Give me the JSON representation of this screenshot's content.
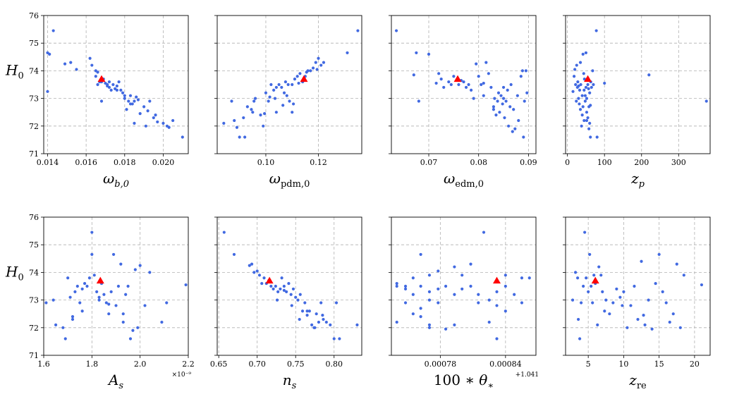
{
  "figure": {
    "ylabel": "H₀",
    "best_fit_color": "#ff0000",
    "point_color": "#4169e1",
    "grid_color": "#b0b0b0"
  },
  "chart_data": [
    {
      "type": "scatter",
      "xlabel": "ωb,0",
      "ylabel": "H₀",
      "xlim": [
        0.0138,
        0.0213
      ],
      "ylim": [
        71,
        76
      ],
      "xticks": [
        0.014,
        0.016,
        0.018,
        0.02
      ],
      "xtick_labels": [
        "0.014",
        "0.016",
        "0.018",
        "0.020"
      ],
      "yticks": [
        71,
        72,
        73,
        74,
        75,
        76
      ],
      "ytick_labels": [
        "71",
        "72",
        "73",
        "74",
        "75",
        "76"
      ],
      "offset_text": "",
      "best_fit": [
        0.0168,
        73.7
      ],
      "x": [
        0.014,
        0.0141,
        0.0143,
        0.014,
        0.0149,
        0.0152,
        0.0155,
        0.0162,
        0.0163,
        0.0165,
        0.0166,
        0.0165,
        0.0166,
        0.0167,
        0.0168,
        0.0169,
        0.017,
        0.0171,
        0.0172,
        0.0172,
        0.0173,
        0.0174,
        0.0175,
        0.0176,
        0.0177,
        0.0178,
        0.0179,
        0.018,
        0.0181,
        0.0182,
        0.0183,
        0.0184,
        0.0185,
        0.0185,
        0.0187,
        0.0188,
        0.019,
        0.0191,
        0.0193,
        0.0195,
        0.0196,
        0.02,
        0.0202,
        0.0205,
        0.021,
        0.0168,
        0.0171,
        0.0176,
        0.018,
        0.0183,
        0.0186,
        0.0192,
        0.0197,
        0.0203
      ],
      "y": [
        74.65,
        74.6,
        75.45,
        73.25,
        74.25,
        74.3,
        74.05,
        74.45,
        74.2,
        74.0,
        73.95,
        73.8,
        73.5,
        73.6,
        73.6,
        73.7,
        73.55,
        73.5,
        73.4,
        73.6,
        73.3,
        73.5,
        73.35,
        73.45,
        73.6,
        73.3,
        73.2,
        73.0,
        72.6,
        72.9,
        73.1,
        72.8,
        72.9,
        72.1,
        72.95,
        72.45,
        72.7,
        72.0,
        72.9,
        72.3,
        72.4,
        72.1,
        72.0,
        72.2,
        71.6,
        72.9,
        73.45,
        73.3,
        73.1,
        72.8,
        73.05,
        72.55,
        72.15,
        71.95
      ]
    },
    {
      "type": "scatter",
      "xlabel": "ωpdm,0",
      "ylabel": "",
      "xlim": [
        0.0815,
        0.1365
      ],
      "ylim": [
        71,
        76
      ],
      "xticks": [
        0.1,
        0.12
      ],
      "xtick_labels": [
        "0.10",
        "0.12"
      ],
      "yticks": [
        71,
        72,
        73,
        74,
        75,
        76
      ],
      "ytick_labels": [],
      "offset_text": "",
      "best_fit": [
        0.1145,
        73.7
      ],
      "x": [
        0.084,
        0.087,
        0.088,
        0.09,
        0.092,
        0.093,
        0.095,
        0.0955,
        0.096,
        0.098,
        0.099,
        0.1,
        0.101,
        0.102,
        0.103,
        0.104,
        0.104,
        0.105,
        0.106,
        0.107,
        0.1075,
        0.108,
        0.109,
        0.11,
        0.11,
        0.111,
        0.112,
        0.113,
        0.114,
        0.115,
        0.116,
        0.117,
        0.118,
        0.119,
        0.12,
        0.121,
        0.122,
        0.131,
        0.135,
        0.089,
        0.0915,
        0.0945,
        0.0995,
        0.1015,
        0.1035,
        0.1065,
        0.1085,
        0.1105,
        0.1125,
        0.1155,
        0.1195
      ],
      "y": [
        72.1,
        72.9,
        72.2,
        71.6,
        71.6,
        72.7,
        72.5,
        72.9,
        73.0,
        72.4,
        72.0,
        73.2,
        72.9,
        73.5,
        73.3,
        73.4,
        72.5,
        73.5,
        73.4,
        73.2,
        73.6,
        73.1,
        72.9,
        73.5,
        72.5,
        73.7,
        73.8,
        73.9,
        73.6,
        73.8,
        74.0,
        74.0,
        74.1,
        74.3,
        74.45,
        74.2,
        74.3,
        74.65,
        75.45,
        71.95,
        72.3,
        72.6,
        72.45,
        73.05,
        73.0,
        72.75,
        73.5,
        72.8,
        73.55,
        73.95,
        74.05
      ]
    },
    {
      "type": "scatter",
      "xlabel": "ωedm,0",
      "ylabel": "",
      "xlim": [
        0.0625,
        0.0915
      ],
      "ylim": [
        71,
        76
      ],
      "xticks": [
        0.07,
        0.08,
        0.09
      ],
      "xtick_labels": [
        "0.07",
        "0.08",
        "0.09"
      ],
      "yticks": [
        71,
        72,
        73,
        74,
        75,
        76
      ],
      "ytick_labels": [],
      "offset_text": "",
      "best_fit": [
        0.0758,
        73.7
      ],
      "x": [
        0.0635,
        0.067,
        0.0675,
        0.068,
        0.07,
        0.0715,
        0.072,
        0.0725,
        0.073,
        0.074,
        0.0745,
        0.075,
        0.076,
        0.0765,
        0.077,
        0.0775,
        0.078,
        0.0785,
        0.079,
        0.0795,
        0.08,
        0.0805,
        0.081,
        0.0815,
        0.082,
        0.0825,
        0.083,
        0.0832,
        0.0835,
        0.0838,
        0.084,
        0.0842,
        0.0845,
        0.0848,
        0.085,
        0.0852,
        0.0855,
        0.0858,
        0.086,
        0.0863,
        0.0865,
        0.087,
        0.0873,
        0.0878,
        0.088,
        0.0885,
        0.0888,
        0.089,
        0.0892,
        0.0895,
        0.0897,
        0.081,
        0.083,
        0.085,
        0.0868
      ],
      "y": [
        75.45,
        73.85,
        74.65,
        72.9,
        74.6,
        73.55,
        73.9,
        73.7,
        73.4,
        73.6,
        73.5,
        73.8,
        73.5,
        73.65,
        73.6,
        73.4,
        73.5,
        73.3,
        73.0,
        74.25,
        73.8,
        73.5,
        73.55,
        74.3,
        73.9,
        73.4,
        72.6,
        73.0,
        72.4,
        72.9,
        73.2,
        72.5,
        73.1,
        72.8,
        73.0,
        72.3,
        72.9,
        73.3,
        72.0,
        72.7,
        73.5,
        72.6,
        71.9,
        73.1,
        72.2,
        73.8,
        74.0,
        71.6,
        72.9,
        74.0,
        73.2,
        73.1,
        72.7,
        73.4,
        71.8
      ]
    },
    {
      "type": "scatter",
      "xlabel": "zp",
      "ylabel": "",
      "xlim": [
        -5,
        385
      ],
      "ylim": [
        71,
        76
      ],
      "xticks": [
        0,
        100,
        200,
        300
      ],
      "xtick_labels": [
        "0",
        "100",
        "200",
        "300"
      ],
      "yticks": [
        71,
        72,
        73,
        74,
        75,
        76
      ],
      "ytick_labels": [],
      "offset_text": "",
      "best_fit": [
        55,
        73.7
      ],
      "x": [
        15,
        18,
        20,
        22,
        24,
        25,
        27,
        28,
        30,
        32,
        33,
        35,
        36,
        38,
        40,
        40,
        42,
        44,
        45,
        45,
        46,
        48,
        50,
        50,
        52,
        52,
        55,
        55,
        58,
        58,
        60,
        60,
        62,
        63,
        65,
        68,
        70,
        78,
        80,
        100,
        220,
        375,
        30,
        35,
        42,
        48,
        52,
        57,
        62
      ],
      "y": [
        73.25,
        73.8,
        74.05,
        73.5,
        72.9,
        74.2,
        73.4,
        73.6,
        73.0,
        72.8,
        73.3,
        72.6,
        73.5,
        72.0,
        73.1,
        72.4,
        74.6,
        73.9,
        72.2,
        73.3,
        73.7,
        72.9,
        74.65,
        73.4,
        73.0,
        72.5,
        72.3,
        73.5,
        71.9,
        72.7,
        73.2,
        72.1,
        71.6,
        73.6,
        73.4,
        74.0,
        73.5,
        75.45,
        71.6,
        73.55,
        73.85,
        72.9,
        73.45,
        74.3,
        72.7,
        73.1,
        72.2,
        73.35,
        72.75
      ]
    },
    {
      "type": "scatter",
      "xlabel": "As",
      "ylabel": "H₀",
      "xlim": [
        1.6e-09,
        2.2e-09
      ],
      "ylim": [
        71,
        76
      ],
      "xticks": [
        1.6e-09,
        1.8e-09,
        2e-09,
        2.2e-09
      ],
      "xtick_labels": [
        "1.6",
        "1.8",
        "2.0",
        "2.2"
      ],
      "yticks": [
        71,
        72,
        73,
        74,
        75,
        76
      ],
      "ytick_labels": [
        "71",
        "72",
        "73",
        "74",
        "75",
        "76"
      ],
      "offset_text": "×10⁻⁹",
      "best_fit": [
        1.835e-09,
        73.7
      ],
      "x": [
        1.61e-09,
        1.64e-09,
        1.65e-09,
        1.68e-09,
        1.69e-09,
        1.7e-09,
        1.71e-09,
        1.72e-09,
        1.73e-09,
        1.74e-09,
        1.75e-09,
        1.76e-09,
        1.77e-09,
        1.78e-09,
        1.79e-09,
        1.8e-09,
        1.8e-09,
        1.81e-09,
        1.82e-09,
        1.83e-09,
        1.84e-09,
        1.85e-09,
        1.86e-09,
        1.87e-09,
        1.88e-09,
        1.89e-09,
        1.9e-09,
        1.91e-09,
        1.92e-09,
        1.93e-09,
        1.94e-09,
        1.95e-09,
        1.96e-09,
        1.98e-09,
        1.99e-09,
        2e-09,
        2.02e-09,
        2.04e-09,
        2.09e-09,
        2.11e-09,
        2.19e-09,
        1.72e-09,
        1.76e-09,
        1.83e-09,
        1.87e-09,
        1.93e-09,
        1.97e-09
      ],
      "y": [
        72.9,
        73.0,
        72.1,
        72.0,
        71.6,
        73.8,
        73.1,
        72.3,
        73.3,
        73.5,
        72.9,
        73.4,
        73.6,
        73.5,
        73.8,
        74.65,
        75.45,
        73.9,
        73.3,
        73.0,
        73.6,
        73.2,
        72.9,
        72.5,
        73.3,
        74.65,
        72.8,
        73.5,
        74.3,
        72.5,
        73.2,
        73.5,
        71.6,
        74.1,
        72.0,
        74.25,
        72.8,
        74.0,
        72.2,
        72.9,
        73.55,
        72.4,
        72.6,
        73.1,
        72.85,
        72.2,
        71.9
      ]
    },
    {
      "type": "scatter",
      "xlabel": "ns",
      "ylabel": "",
      "xlim": [
        0.648,
        0.836
      ],
      "ylim": [
        71,
        76
      ],
      "xticks": [
        0.65,
        0.7,
        0.75,
        0.8
      ],
      "xtick_labels": [
        "0.65",
        "0.70",
        "0.75",
        "0.80"
      ],
      "yticks": [
        71,
        72,
        73,
        74,
        75,
        76
      ],
      "ytick_labels": [],
      "offset_text": "",
      "best_fit": [
        0.716,
        73.7
      ],
      "x": [
        0.657,
        0.67,
        0.69,
        0.693,
        0.696,
        0.7,
        0.703,
        0.706,
        0.709,
        0.712,
        0.715,
        0.718,
        0.721,
        0.724,
        0.727,
        0.73,
        0.732,
        0.735,
        0.738,
        0.741,
        0.744,
        0.747,
        0.75,
        0.753,
        0.756,
        0.759,
        0.762,
        0.765,
        0.768,
        0.771,
        0.774,
        0.777,
        0.78,
        0.783,
        0.786,
        0.79,
        0.795,
        0.8,
        0.803,
        0.807,
        0.83,
        0.726,
        0.735,
        0.745,
        0.755,
        0.765,
        0.775,
        0.785
      ],
      "y": [
        75.45,
        74.65,
        74.25,
        74.3,
        74.0,
        74.05,
        73.9,
        73.6,
        73.8,
        73.6,
        73.7,
        73.5,
        73.4,
        73.5,
        73.3,
        73.4,
        73.8,
        73.5,
        73.3,
        73.6,
        73.2,
        73.4,
        73.1,
        73.0,
        73.2,
        72.6,
        72.9,
        72.6,
        72.6,
        72.1,
        72.0,
        72.5,
        72.2,
        72.9,
        72.3,
        72.2,
        72.1,
        71.6,
        72.9,
        71.6,
        72.1,
        73.0,
        73.35,
        72.8,
        72.3,
        72.45,
        72.0,
        72.45
      ]
    },
    {
      "type": "scatter",
      "xlabel": "100 ∗ θ∗",
      "ylabel": "",
      "xlim": [
        0.000735,
        0.000868
      ],
      "ylim": [
        71,
        76
      ],
      "xticks": [
        0.00078,
        0.00084
      ],
      "xtick_labels": [
        "0.00078",
        "0.00084"
      ],
      "yticks": [
        71,
        72,
        73,
        74,
        75,
        76
      ],
      "ytick_labels": [],
      "offset_text": "+1.041",
      "best_fit": [
        0.000832,
        73.7
      ],
      "x": [
        0.00074,
        0.00074,
        0.00074,
        0.000748,
        0.000748,
        0.000748,
        0.000755,
        0.000755,
        0.000755,
        0.000762,
        0.000762,
        0.000762,
        0.000762,
        0.00077,
        0.00077,
        0.00077,
        0.00077,
        0.00077,
        0.000778,
        0.000778,
        0.000785,
        0.000785,
        0.000793,
        0.000793,
        0.0008,
        0.0008,
        0.000808,
        0.000808,
        0.000815,
        0.000815,
        0.00082,
        0.000825,
        0.000825,
        0.000832,
        0.000832,
        0.00084,
        0.00084,
        0.00084,
        0.000848,
        0.000855,
        0.000855,
        0.000862,
        0.000832,
        0.000778,
        0.000793
      ],
      "y": [
        73.5,
        73.6,
        72.2,
        73.4,
        72.9,
        73.5,
        73.8,
        73.2,
        72.5,
        73.5,
        72.7,
        72.4,
        74.65,
        73.3,
        73.0,
        72.1,
        72.0,
        73.9,
        74.05,
        72.9,
        73.5,
        71.95,
        73.2,
        72.1,
        73.4,
        73.9,
        74.3,
        73.5,
        73.2,
        72.9,
        75.45,
        72.2,
        73.0,
        73.3,
        71.6,
        73.9,
        73.5,
        72.6,
        73.2,
        73.8,
        72.9,
        73.8,
        72.8,
        73.4,
        74.2
      ]
    },
    {
      "type": "scatter",
      "xlabel": "zre",
      "ylabel": "",
      "xlim": [
        1.8,
        22.2
      ],
      "ylim": [
        71,
        76
      ],
      "xticks": [
        5,
        10,
        15,
        20
      ],
      "xtick_labels": [
        "5",
        "10",
        "15",
        "20"
      ],
      "yticks": [
        71,
        72,
        73,
        74,
        75,
        76
      ],
      "ytick_labels": [],
      "offset_text": "",
      "best_fit": [
        6.0,
        73.7
      ],
      "x": [
        2.8,
        3.2,
        3.5,
        3.6,
        3.8,
        4.0,
        4.3,
        4.5,
        4.7,
        5.0,
        5.2,
        5.4,
        5.6,
        5.8,
        6.0,
        6.3,
        6.5,
        6.8,
        7.0,
        7.5,
        8.0,
        8.5,
        9.0,
        9.5,
        10.0,
        10.5,
        11.0,
        11.5,
        12.0,
        12.5,
        13.0,
        13.5,
        14.0,
        14.5,
        15.0,
        15.5,
        16.0,
        17.0,
        17.5,
        18.0,
        18.5,
        21.0,
        7.3,
        9.8,
        12.8,
        16.5
      ],
      "y": [
        73.0,
        74.0,
        73.8,
        72.3,
        71.6,
        72.9,
        73.5,
        75.45,
        73.8,
        73.3,
        74.65,
        73.5,
        72.9,
        73.9,
        73.6,
        72.1,
        74.2,
        73.9,
        73.3,
        73.0,
        72.5,
        72.9,
        73.4,
        73.1,
        73.3,
        72.0,
        72.8,
        73.5,
        72.3,
        74.4,
        72.1,
        73.0,
        71.95,
        73.6,
        74.65,
        73.3,
        72.9,
        72.5,
        74.3,
        72.0,
        73.9,
        73.55,
        72.6,
        72.8,
        72.45,
        72.2
      ]
    }
  ]
}
